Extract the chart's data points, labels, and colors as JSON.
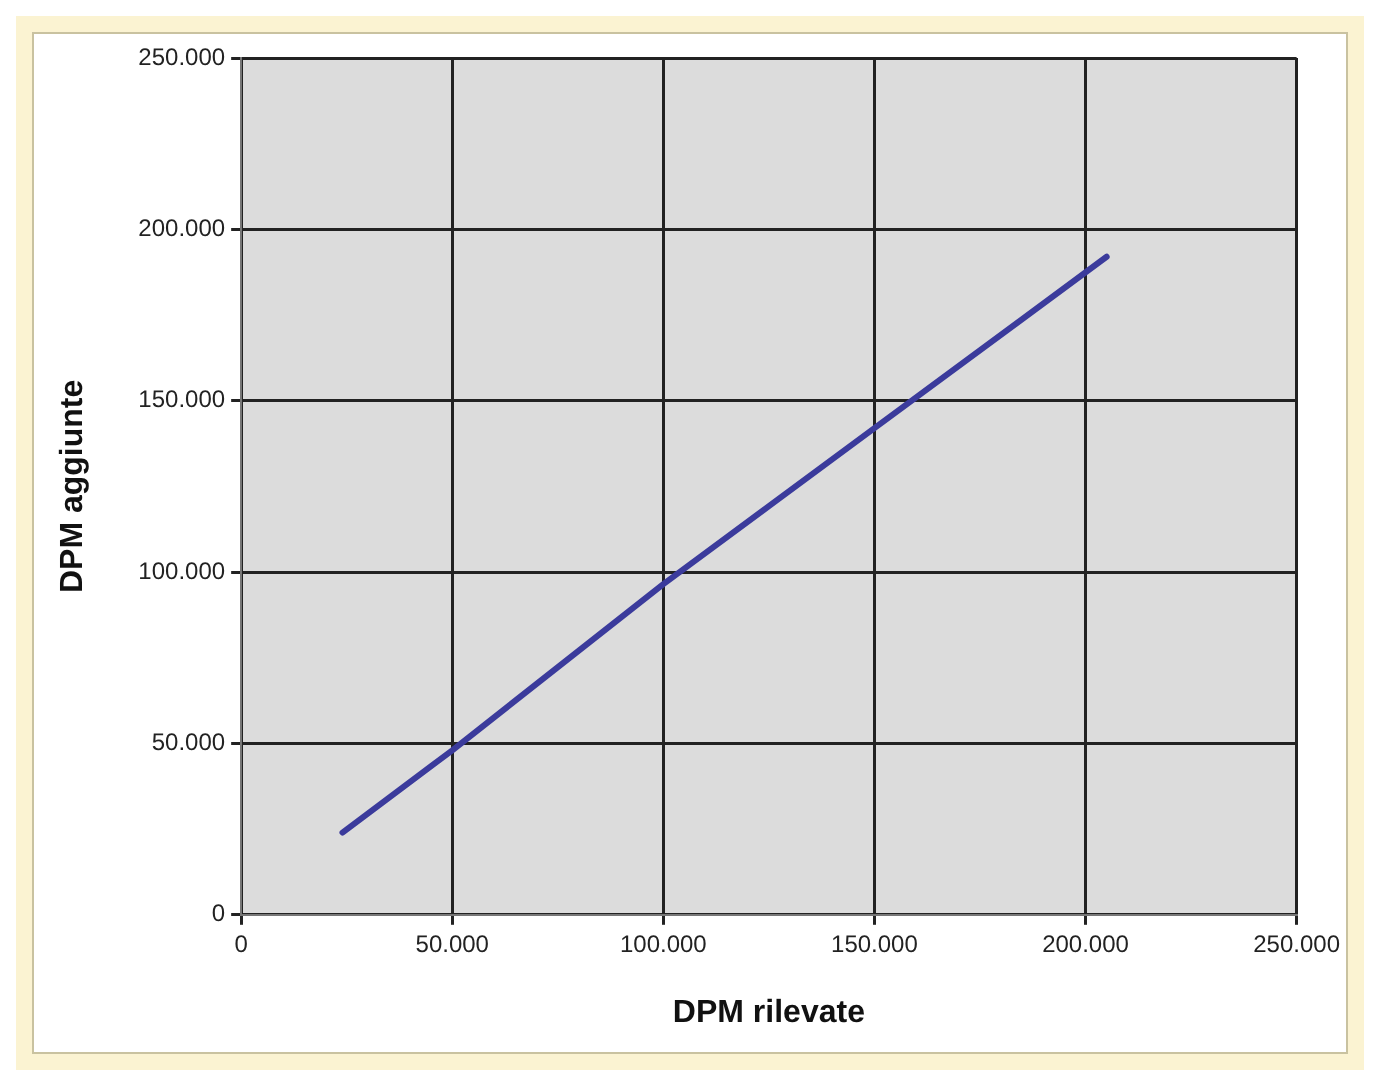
{
  "chart_data": {
    "type": "line",
    "xlabel": "DPM rilevate",
    "ylabel": "DPM aggiunte",
    "x": [
      24000,
      50000,
      100000,
      150000,
      205000
    ],
    "series": [
      {
        "color": "#3b3b9c",
        "values": [
          24000,
          48000,
          96500,
          142000,
          192000
        ]
      }
    ],
    "xlim": [
      0,
      250000
    ],
    "ylim": [
      0,
      250000
    ],
    "xticks": [
      0,
      {
        "value": 50000,
        "label": "50.000"
      },
      {
        "value": 100000,
        "label": "100.000"
      },
      {
        "value": 150000,
        "label": "150.000"
      },
      {
        "value": 200000,
        "label": "200.000"
      },
      {
        "value": 250000,
        "label": "250.000"
      }
    ],
    "yticks": [
      0,
      {
        "value": 50000,
        "label": "50.000"
      },
      {
        "value": 100000,
        "label": "100.000"
      },
      {
        "value": 150000,
        "label": "150.000"
      },
      {
        "value": 200000,
        "label": "200.000"
      },
      {
        "value": 250000,
        "label": "250.000"
      }
    ],
    "grid": true,
    "marker": "none",
    "line_style": "solid",
    "legend": false
  }
}
